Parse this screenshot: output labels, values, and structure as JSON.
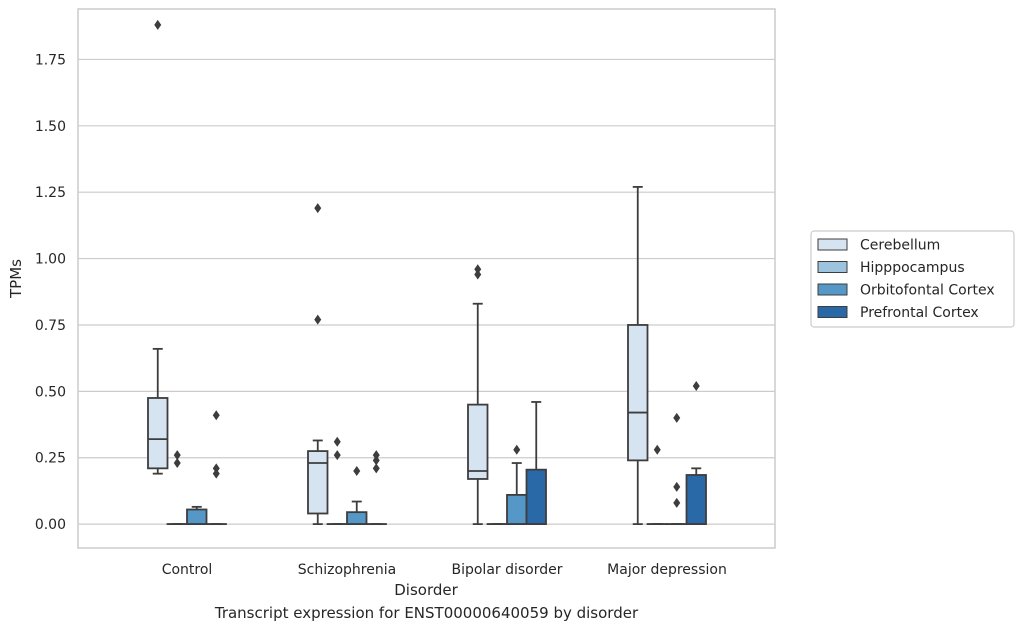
{
  "caption": "Transcript expression for ENST00000640059 by disorder",
  "chart_data": {
    "type": "box",
    "title": "",
    "xlabel": "Disorder",
    "ylabel": "TPMs",
    "ylim": [
      -0.09,
      1.94
    ],
    "yticks": [
      0.0,
      0.25,
      0.5,
      0.75,
      1.0,
      1.25,
      1.5,
      1.75
    ],
    "ytick_labels": [
      "0.00",
      "0.25",
      "0.50",
      "0.75",
      "1.00",
      "1.25",
      "1.50",
      "1.75"
    ],
    "grid": "horizontal",
    "legend_position": "right",
    "categories": [
      "Control",
      "Schizophrenia",
      "Bipolar disorder",
      "Major depression"
    ],
    "series": [
      {
        "name": "Cerebellum",
        "color": "#d6e4f1",
        "boxes": [
          {
            "whislo": 0.19,
            "q1": 0.21,
            "med": 0.32,
            "q3": 0.475,
            "whishi": 0.66,
            "fliers": [
              1.88
            ]
          },
          {
            "whislo": 0.0,
            "q1": 0.04,
            "med": 0.23,
            "q3": 0.275,
            "whishi": 0.315,
            "fliers": [
              0.77,
              1.19
            ]
          },
          {
            "whislo": 0.0,
            "q1": 0.17,
            "med": 0.2,
            "q3": 0.45,
            "whishi": 0.83,
            "fliers": [
              0.94,
              0.96
            ]
          },
          {
            "whislo": 0.0,
            "q1": 0.24,
            "med": 0.42,
            "q3": 0.75,
            "whishi": 1.27,
            "fliers": []
          }
        ]
      },
      {
        "name": "Hipppocampus",
        "color": "#9dc3de",
        "boxes": [
          {
            "whislo": 0.0,
            "q1": 0.0,
            "med": 0.0,
            "q3": 0.0,
            "whishi": 0.0,
            "fliers": [
              0.23,
              0.26
            ]
          },
          {
            "whislo": 0.0,
            "q1": 0.0,
            "med": 0.0,
            "q3": 0.0,
            "whishi": 0.0,
            "fliers": [
              0.26,
              0.31
            ]
          },
          {
            "whislo": 0.0,
            "q1": 0.0,
            "med": 0.0,
            "q3": 0.0,
            "whishi": 0.0,
            "fliers": []
          },
          {
            "whislo": 0.0,
            "q1": 0.0,
            "med": 0.0,
            "q3": 0.0,
            "whishi": 0.0,
            "fliers": [
              0.28
            ]
          }
        ]
      },
      {
        "name": "Orbitofontal Cortex",
        "color": "#5597c6",
        "boxes": [
          {
            "whislo": 0.0,
            "q1": 0.0,
            "med": 0.0,
            "q3": 0.055,
            "whishi": 0.065,
            "fliers": []
          },
          {
            "whislo": 0.0,
            "q1": 0.0,
            "med": 0.0,
            "q3": 0.045,
            "whishi": 0.085,
            "fliers": [
              0.2
            ]
          },
          {
            "whislo": 0.0,
            "q1": 0.0,
            "med": 0.0,
            "q3": 0.11,
            "whishi": 0.23,
            "fliers": [
              0.28
            ]
          },
          {
            "whislo": 0.0,
            "q1": 0.0,
            "med": 0.0,
            "q3": 0.0,
            "whishi": 0.0,
            "fliers": [
              0.08,
              0.14,
              0.4
            ]
          }
        ]
      },
      {
        "name": "Prefrontal Cortex",
        "color": "#2a69a8",
        "boxes": [
          {
            "whislo": 0.0,
            "q1": 0.0,
            "med": 0.0,
            "q3": 0.0,
            "whishi": 0.0,
            "fliers": [
              0.19,
              0.21,
              0.41
            ]
          },
          {
            "whislo": 0.0,
            "q1": 0.0,
            "med": 0.0,
            "q3": 0.0,
            "whishi": 0.0,
            "fliers": [
              0.21,
              0.24,
              0.26
            ]
          },
          {
            "whislo": 0.0,
            "q1": 0.0,
            "med": 0.0,
            "q3": 0.205,
            "whishi": 0.46,
            "fliers": []
          },
          {
            "whislo": 0.0,
            "q1": 0.0,
            "med": 0.0,
            "q3": 0.185,
            "whishi": 0.21,
            "fliers": [
              0.52
            ]
          }
        ]
      }
    ]
  }
}
